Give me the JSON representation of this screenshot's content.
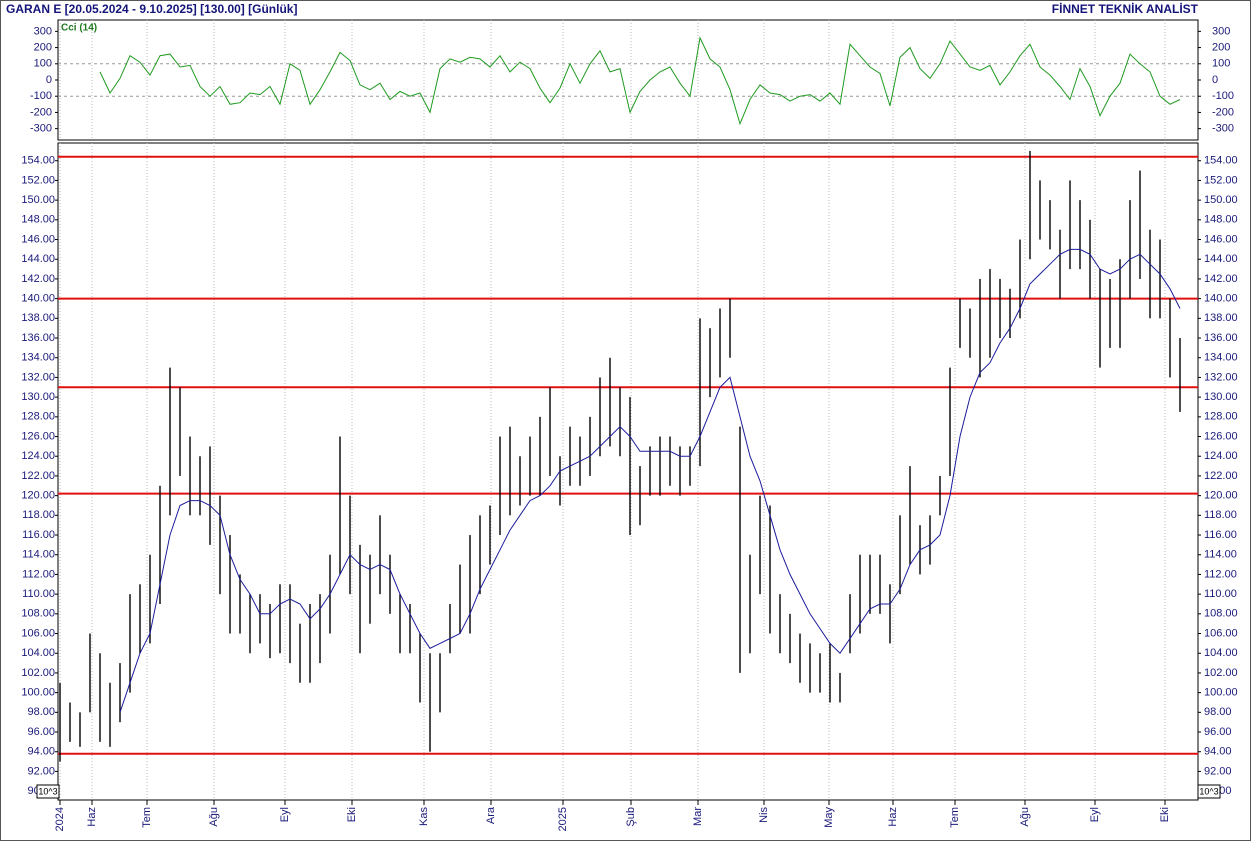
{
  "header": {
    "left": "GARAN E  [20.05.2024 - 9.10.2025]  [130.00]  [Günlük]",
    "right": "FİNNET TEKNİK ANALİST"
  },
  "chart_data": [
    {
      "type": "line",
      "label": "Cci (14)",
      "color": "#1f9a1f",
      "ylim": [
        -370,
        370
      ],
      "yticks": [
        300,
        200,
        100,
        0,
        -100,
        -200,
        -300
      ],
      "grid_levels": [
        100,
        -100
      ],
      "values": [
        null,
        null,
        null,
        null,
        50,
        -80,
        10,
        150,
        110,
        30,
        150,
        160,
        80,
        90,
        -40,
        -100,
        -40,
        -150,
        -140,
        -80,
        -90,
        -40,
        -150,
        100,
        60,
        -150,
        -60,
        50,
        170,
        120,
        -30,
        -60,
        -20,
        -120,
        -70,
        -100,
        -80,
        -200,
        70,
        130,
        110,
        140,
        130,
        80,
        150,
        50,
        110,
        70,
        -50,
        -140,
        -50,
        100,
        -20,
        100,
        180,
        50,
        70,
        -200,
        -70,
        0,
        50,
        80,
        -20,
        -100,
        260,
        130,
        80,
        -60,
        -270,
        -120,
        -30,
        -80,
        -90,
        -130,
        -100,
        -90,
        -130,
        -80,
        -150,
        220,
        150,
        80,
        40,
        -160,
        140,
        200,
        70,
        10,
        100,
        240,
        160,
        80,
        60,
        90,
        -30,
        50,
        150,
        220,
        80,
        30,
        -40,
        -120,
        70,
        -40,
        -220,
        -100,
        -20,
        160,
        100,
        50,
        -100,
        -150,
        -120
      ]
    },
    {
      "type": "hilo",
      "color": "#000000",
      "ylim": [
        89.1,
        155.8
      ],
      "xlim": [
        -0.2,
        113.8
      ],
      "unit_label": "10^3",
      "highs": [
        101,
        99,
        98,
        106,
        104,
        101,
        103,
        110,
        111,
        114,
        121,
        133,
        131,
        126,
        124,
        125,
        120,
        116,
        112,
        110,
        110,
        109,
        111,
        111,
        107,
        109,
        110,
        114,
        126,
        120,
        115,
        114,
        118,
        114,
        110,
        109,
        106,
        104,
        104,
        109,
        113,
        116,
        118,
        119,
        126,
        127,
        124,
        126,
        128,
        131,
        124,
        127,
        126,
        128,
        132,
        134,
        131,
        130,
        123,
        125,
        126,
        126,
        125,
        125,
        138,
        137,
        139,
        140,
        127,
        114,
        120,
        119,
        110,
        108,
        106,
        105,
        104,
        105,
        102,
        110,
        114,
        114,
        114,
        111,
        118,
        123,
        117,
        118,
        122,
        133,
        140,
        139,
        142,
        143,
        142,
        141,
        146,
        155,
        152,
        150,
        147,
        152,
        150,
        148,
        143,
        142,
        144,
        150,
        153,
        147,
        146,
        140,
        136
      ],
      "lows": [
        93,
        95,
        94.5,
        98,
        95,
        94.5,
        97,
        100,
        104,
        105,
        109,
        118,
        122,
        118,
        118,
        115,
        110,
        106,
        106,
        104,
        105,
        103.5,
        104,
        103,
        101,
        101,
        103,
        106,
        112,
        110,
        104,
        107,
        110,
        108,
        104,
        104,
        99,
        94,
        98,
        104,
        106,
        106,
        110,
        113,
        116,
        118,
        119,
        120,
        120,
        122,
        119,
        121,
        121,
        122,
        124,
        125,
        124,
        116,
        117,
        120,
        120,
        121,
        120,
        121,
        123,
        130,
        132,
        134,
        102,
        104,
        110,
        106,
        104,
        103,
        101,
        100,
        100,
        99,
        99,
        104,
        106,
        108,
        108,
        105,
        110,
        113,
        112,
        113,
        118,
        122,
        135,
        134,
        132,
        134,
        136,
        136,
        138,
        144,
        146,
        145,
        140,
        143,
        143,
        140,
        133,
        135,
        135,
        140,
        142,
        138,
        138,
        132,
        128.5
      ],
      "ma": {
        "color": "#1c1c9c",
        "values": [
          null,
          null,
          null,
          null,
          null,
          null,
          98,
          101,
          104,
          106,
          111,
          116,
          119,
          119.5,
          119.5,
          119,
          118,
          114,
          111.5,
          110,
          108,
          108,
          109,
          109.5,
          109,
          107.5,
          108.5,
          110,
          112,
          114,
          113,
          112.5,
          113,
          112.5,
          110,
          108,
          106,
          104.5,
          105,
          105.5,
          106,
          108,
          110.5,
          112.5,
          114.5,
          116.5,
          118,
          119.5,
          120,
          121,
          122.5,
          123,
          123.5,
          124,
          125,
          126,
          127,
          126,
          124.5,
          124.5,
          124.5,
          124.5,
          124,
          124,
          126,
          128.5,
          131,
          132,
          128,
          124,
          121.5,
          118,
          114.5,
          112,
          110,
          108,
          106.5,
          105,
          104,
          105.5,
          107,
          108.5,
          109,
          109,
          110.5,
          113,
          114.5,
          115,
          116,
          120,
          126,
          130,
          132.5,
          133.5,
          135.5,
          137,
          139,
          141.5,
          142.5,
          143.5,
          144.5,
          145,
          145,
          144.5,
          143,
          142.5,
          143,
          144,
          144.5,
          143.5,
          142.5,
          141,
          139
        ]
      },
      "hlines": [
        154.4,
        140.0,
        131.0,
        120.2,
        93.8
      ],
      "hline_color": "#e01010",
      "yticks": [
        {
          "value": 154,
          "label": "154.00"
        },
        {
          "value": 152,
          "label": "152.00"
        },
        {
          "value": 150,
          "label": "150.00"
        },
        {
          "value": 148,
          "label": "148.00"
        },
        {
          "value": 146,
          "label": "146.00"
        },
        {
          "value": 144,
          "label": "144.00"
        },
        {
          "value": 142,
          "label": "142.00"
        },
        {
          "value": 140,
          "label": "140.00"
        },
        {
          "value": 138,
          "label": "138.00"
        },
        {
          "value": 136,
          "label": "136.00"
        },
        {
          "value": 134,
          "label": "134.00"
        },
        {
          "value": 132,
          "label": "132.00"
        },
        {
          "value": 130,
          "label": "130.00"
        },
        {
          "value": 128,
          "label": "128.00"
        },
        {
          "value": 126,
          "label": "126.00"
        },
        {
          "value": 124,
          "label": "124.00"
        },
        {
          "value": 122,
          "label": "122.00"
        },
        {
          "value": 120,
          "label": "120.00"
        },
        {
          "value": 118,
          "label": "118.00"
        },
        {
          "value": 116,
          "label": "116.00"
        },
        {
          "value": 114,
          "label": "114.00"
        },
        {
          "value": 112,
          "label": "112.00"
        },
        {
          "value": 110,
          "label": "110.00"
        },
        {
          "value": 108,
          "label": "108.00"
        },
        {
          "value": 106,
          "label": "106.00"
        },
        {
          "value": 104,
          "label": "104.00"
        },
        {
          "value": 102,
          "label": "102.00"
        },
        {
          "value": 100,
          "label": "100.00"
        },
        {
          "value": 98,
          "label": "98.00"
        },
        {
          "value": 96,
          "label": "96.00"
        },
        {
          "value": 94,
          "label": "94.00"
        },
        {
          "value": 92,
          "label": "92.00"
        },
        {
          "value": 90,
          "label": "90.00"
        }
      ],
      "xticks": [
        {
          "value": 0,
          "label": "2024"
        },
        {
          "value": 3.2,
          "label": "Haz"
        },
        {
          "value": 8.7,
          "label": "Tem"
        },
        {
          "value": 15.4,
          "label": "Ağu"
        },
        {
          "value": 22.5,
          "label": "Eyl"
        },
        {
          "value": 29.2,
          "label": "Eki"
        },
        {
          "value": 36.4,
          "label": "Kas"
        },
        {
          "value": 43.1,
          "label": "Ara"
        },
        {
          "value": 50.3,
          "label": "2025"
        },
        {
          "value": 57.1,
          "label": "Şub"
        },
        {
          "value": 63.8,
          "label": "Mar"
        },
        {
          "value": 70.4,
          "label": "Nis"
        },
        {
          "value": 76.9,
          "label": "May"
        },
        {
          "value": 83.3,
          "label": "Haz"
        },
        {
          "value": 89.5,
          "label": "Tem"
        },
        {
          "value": 96.5,
          "label": "Ağu"
        },
        {
          "value": 103.5,
          "label": "Eyl"
        },
        {
          "value": 110.5,
          "label": "Eki"
        }
      ]
    }
  ]
}
